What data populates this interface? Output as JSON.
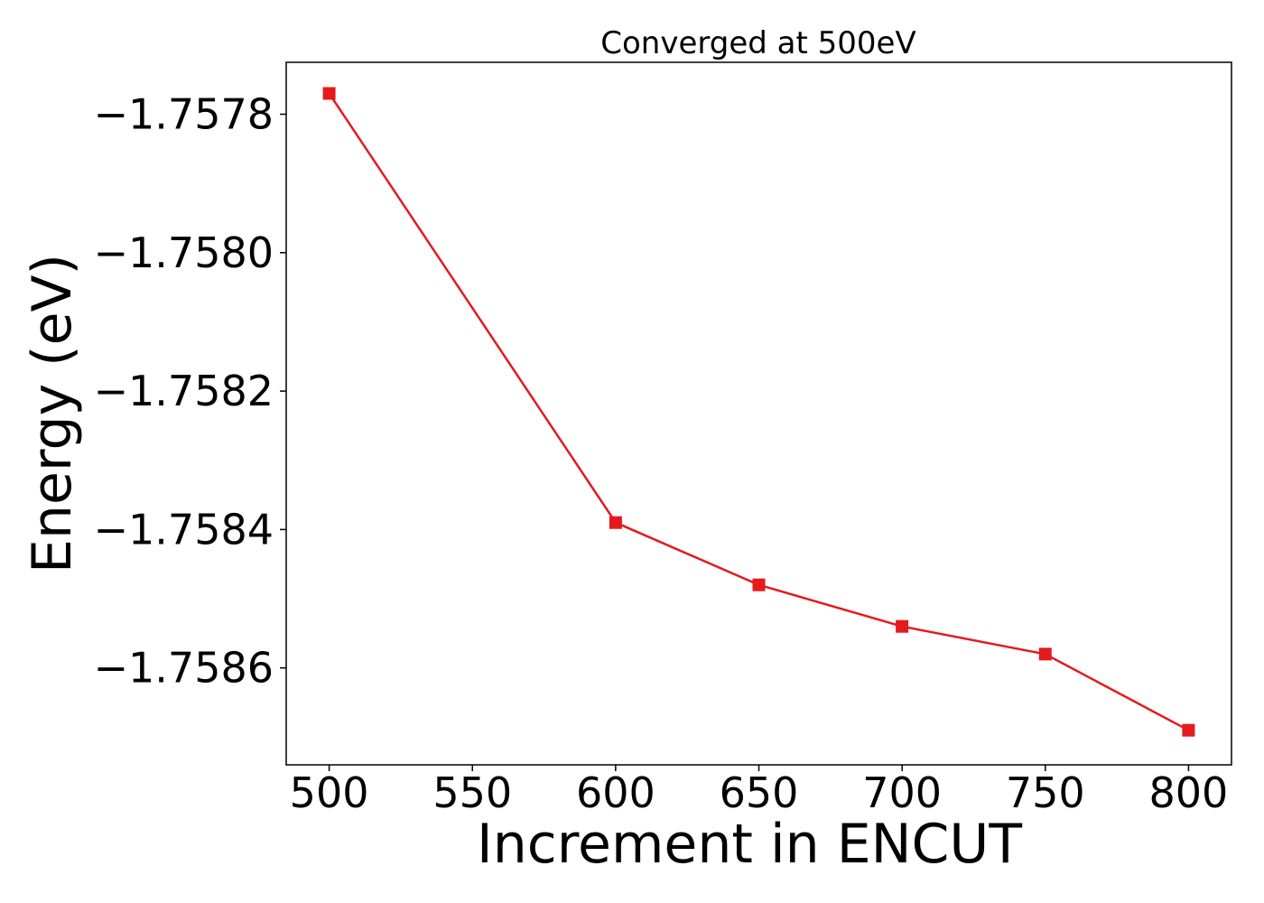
{
  "chart_data": {
    "type": "line",
    "title": "Converged at 500eV",
    "xlabel": "Increment in ENCUT",
    "ylabel": "Energy (eV)",
    "x": [
      500,
      600,
      650,
      700,
      750,
      800
    ],
    "series": [
      {
        "values": [
          -1.75777,
          -1.75839,
          -1.75848,
          -1.75854,
          -1.75858,
          -1.75869
        ],
        "color": "#e41a1c",
        "marker": "square"
      }
    ],
    "xlim": [
      485,
      815
    ],
    "ylim": [
      -1.75874,
      -1.757725
    ],
    "xticks": [
      500,
      550,
      600,
      650,
      700,
      750,
      800
    ],
    "xtick_labels": [
      "500",
      "550",
      "600",
      "650",
      "700",
      "750",
      "800"
    ],
    "yticks": [
      -1.7578,
      -1.758,
      -1.7582,
      -1.7584,
      -1.7586
    ],
    "ytick_labels": [
      "−1.7578",
      "−1.7580",
      "−1.7582",
      "−1.7584",
      "−1.7586"
    ],
    "grid": false,
    "legend": "none"
  }
}
